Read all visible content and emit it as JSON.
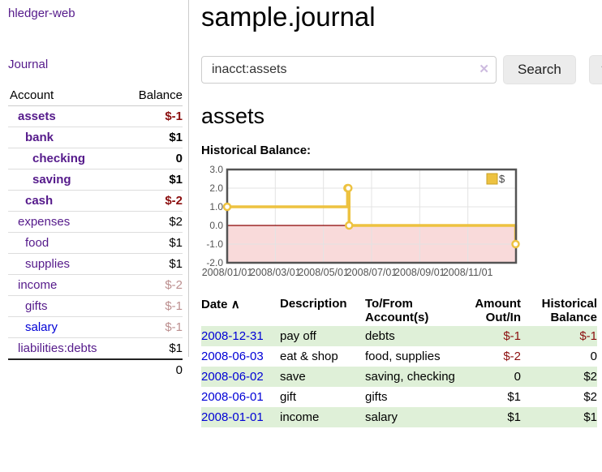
{
  "sidebar": {
    "brand": "hledger-web",
    "journal_label": "Journal",
    "header": {
      "account": "Account",
      "balance": "Balance"
    },
    "accounts": [
      {
        "name": "assets",
        "balance": "$-1",
        "depth": 1,
        "bold": true,
        "balance_style": "negative",
        "link_style": "purple"
      },
      {
        "name": "bank",
        "balance": "$1",
        "depth": 2,
        "bold": true,
        "balance_style": "normal",
        "link_style": "purple"
      },
      {
        "name": "checking",
        "balance": "0",
        "depth": 3,
        "bold": true,
        "balance_style": "normal",
        "link_style": "purple"
      },
      {
        "name": "saving",
        "balance": "$1",
        "depth": 3,
        "bold": true,
        "balance_style": "normal",
        "link_style": "purple"
      },
      {
        "name": "cash",
        "balance": "$-2",
        "depth": 2,
        "bold": true,
        "balance_style": "negative",
        "link_style": "purple"
      },
      {
        "name": "expenses",
        "balance": "$2",
        "depth": 1,
        "bold": false,
        "balance_style": "normal",
        "link_style": "purple"
      },
      {
        "name": "food",
        "balance": "$1",
        "depth": 2,
        "bold": false,
        "balance_style": "normal",
        "link_style": "purple"
      },
      {
        "name": "supplies",
        "balance": "$1",
        "depth": 2,
        "bold": false,
        "balance_style": "normal",
        "link_style": "purple"
      },
      {
        "name": "income",
        "balance": "$-2",
        "depth": 1,
        "bold": false,
        "balance_style": "negative-faded",
        "link_style": "purple"
      },
      {
        "name": "gifts",
        "balance": "$-1",
        "depth": 2,
        "bold": false,
        "balance_style": "negative-faded",
        "link_style": "purple"
      },
      {
        "name": "salary",
        "balance": "$-1",
        "depth": 2,
        "bold": false,
        "balance_style": "negative-faded",
        "link_style": "blue"
      },
      {
        "name": "liabilities:debts",
        "balance": "$1",
        "depth": 1,
        "bold": false,
        "balance_style": "normal",
        "link_style": "purple"
      }
    ],
    "total": "0"
  },
  "main": {
    "title": "sample.journal",
    "search": {
      "value": "inacct:assets",
      "clear_icon": "✕",
      "button_label": "Search",
      "help_label": "?"
    },
    "account_heading": "assets",
    "chart_label": "Historical Balance:"
  },
  "chart_data": {
    "type": "line",
    "style": "steps",
    "title": "Historical Balance",
    "series": [
      {
        "name": "$",
        "color": "#edc240",
        "points": [
          [
            "2008-01-01",
            1
          ],
          [
            "2008-06-01",
            2
          ],
          [
            "2008-06-02",
            2
          ],
          [
            "2008-06-03",
            0
          ],
          [
            "2008-12-31",
            -1
          ]
        ]
      }
    ],
    "ylim": [
      -2,
      3
    ],
    "yticks": [
      "3.0",
      "2.0",
      "1.0",
      "0.0",
      "-1.0",
      "-2.0"
    ],
    "xticks": [
      {
        "label": "2008/01/01",
        "month": 0
      },
      {
        "label": "2008/03/01",
        "month": 2
      },
      {
        "label": "2008/05/01",
        "month": 4
      },
      {
        "label": "2008/07/01",
        "month": 6
      },
      {
        "label": "2008/09/01",
        "month": 8
      },
      {
        "label": "2008/11/01",
        "month": 10
      }
    ],
    "xlim_months": [
      0,
      12
    ],
    "grid": true,
    "legend_position": "top-right",
    "negative_region_fill": "#f9dada",
    "zero_line_color": "#8b0000",
    "tick_color": "#545454"
  },
  "register": {
    "headers": {
      "date": "Date",
      "description": "Description",
      "account": "To/From Account(s)",
      "amount": "Amount Out/In",
      "balance": "Historical Balance"
    },
    "sort_icon": "∧",
    "rows": [
      {
        "date": "2008-12-31",
        "description": "pay off",
        "accounts": "debts",
        "amount": "$-1",
        "balance": "$-1"
      },
      {
        "date": "2008-06-03",
        "description": "eat & shop",
        "accounts": "food, supplies",
        "amount": "$-2",
        "balance": "0"
      },
      {
        "date": "2008-06-02",
        "description": "save",
        "accounts": "saving, checking",
        "amount": "0",
        "balance": "$2"
      },
      {
        "date": "2008-06-01",
        "description": "gift",
        "accounts": "gifts",
        "amount": "$1",
        "balance": "$2"
      },
      {
        "date": "2008-01-01",
        "description": "income",
        "accounts": "salary",
        "amount": "$1",
        "balance": "$1"
      }
    ]
  }
}
